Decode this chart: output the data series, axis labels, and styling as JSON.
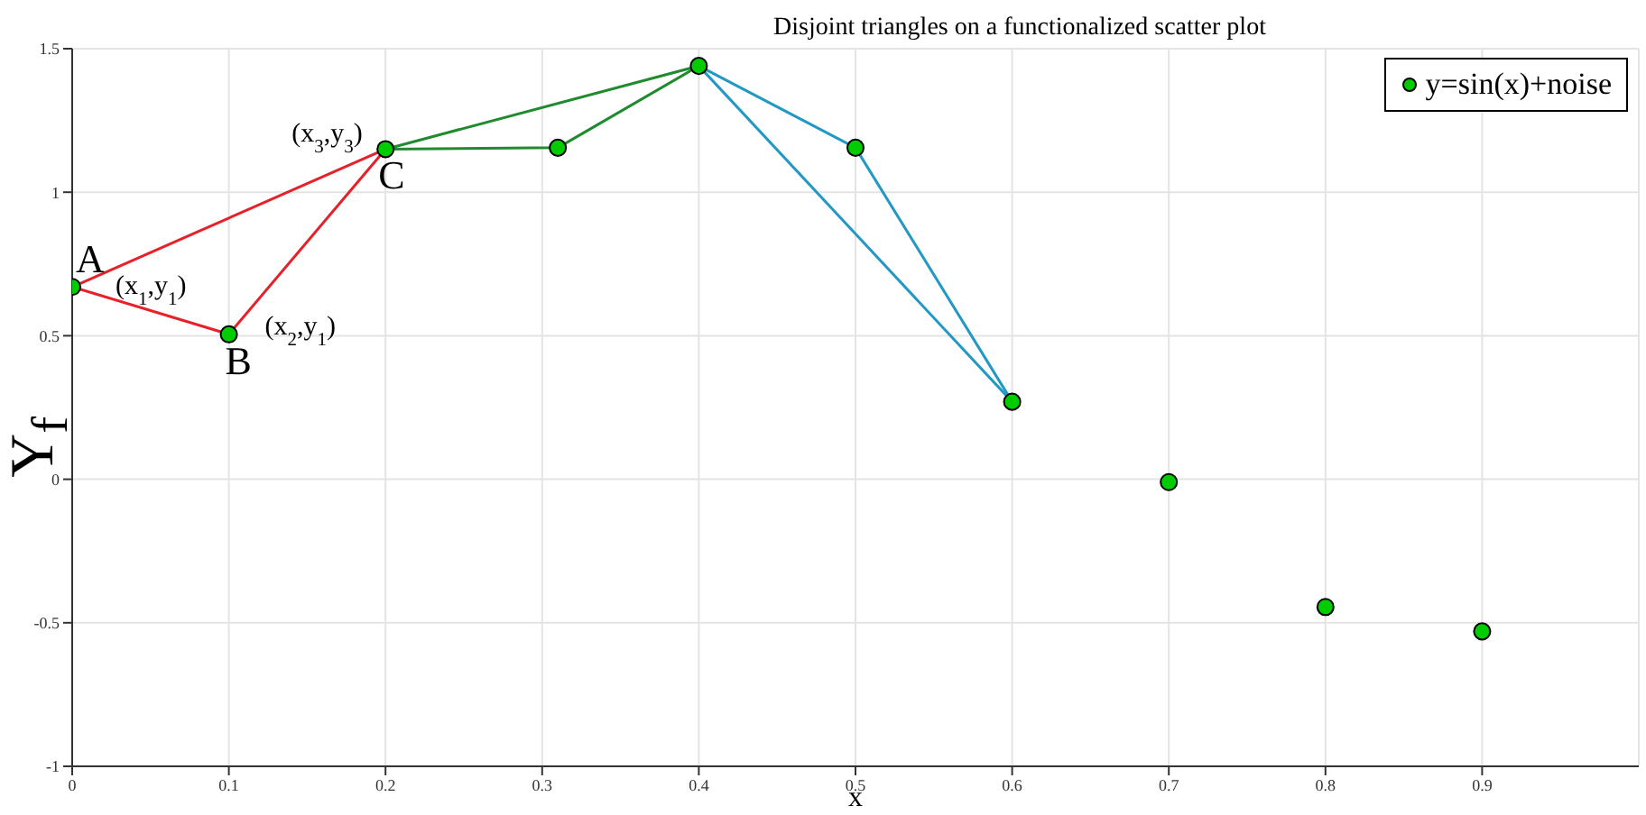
{
  "chart_data": {
    "type": "scatter",
    "title": "Disjoint triangles on a functionalized scatter plot",
    "xlabel": "x",
    "ylabel": "Y$_{f}$",
    "xlim": [
      0,
      1
    ],
    "xticks": [
      0,
      0.1,
      0.2,
      0.3,
      0.4,
      0.5,
      0.6,
      0.7,
      0.8,
      0.9
    ],
    "ylim": [
      -1,
      1.5
    ],
    "yticks": [
      -1,
      -0.5,
      0,
      0.5,
      1,
      1.5
    ],
    "grid": true,
    "legend": "top right",
    "series": [
      {
        "name": "y=sin(x)+noise",
        "marker": "circle",
        "color": "#00cc00",
        "x": [
          0,
          0.1,
          0.2,
          0.31,
          0.4,
          0.5,
          0.6,
          0.7,
          0.8,
          0.9
        ],
        "values": [
          0.67,
          0.505,
          1.15,
          1.155,
          1.44,
          1.155,
          0.27,
          -0.01,
          -0.445,
          -0.53
        ]
      },
      {
        "type": "line",
        "marker": "none",
        "color": "#e8202a",
        "x": [
          0,
          0.1,
          0.2
        ],
        "values": [
          0.67,
          0.505,
          1.15
        ]
      },
      {
        "type": "line",
        "marker": "none",
        "color": "#e8202a",
        "x": [
          0,
          0.2
        ],
        "values": [
          0.67,
          1.15
        ]
      },
      {
        "type": "line",
        "marker": "none",
        "color": "#1f8a2e",
        "x": [
          0.2,
          0.31,
          0.4
        ],
        "values": [
          1.15,
          1.155,
          1.44
        ]
      },
      {
        "type": "line",
        "marker": "none",
        "color": "#1f8a2e",
        "x": [
          0.2,
          0.4
        ],
        "values": [
          1.15,
          1.44
        ]
      },
      {
        "type": "line",
        "marker": "none",
        "color": "#2299c4",
        "x": [
          0.4,
          0.5,
          0.6
        ],
        "values": [
          1.44,
          1.155,
          0.27
        ]
      },
      {
        "type": "line",
        "marker": "none",
        "color": "#2299c4",
        "x": [
          0.4,
          0.6
        ],
        "values": [
          1.44,
          0.27
        ]
      }
    ],
    "annotations": [
      {
        "text": "A",
        "x": 0,
        "y": 0.67
      },
      {
        "text": "(x$_{1}$,y$_{1}$)",
        "x": 0,
        "y": 0.67
      },
      {
        "text": "B",
        "x": 0.1,
        "y": 0.505
      },
      {
        "text": "(x$_{2}$,y$_{1}$)",
        "x": 0.1,
        "y": 0.505
      },
      {
        "text": "C",
        "x": 0.2,
        "y": 1.15
      },
      {
        "text": "(x$_{3}$,y$_{3}$)",
        "x": 0.2,
        "y": 1.15
      }
    ]
  }
}
